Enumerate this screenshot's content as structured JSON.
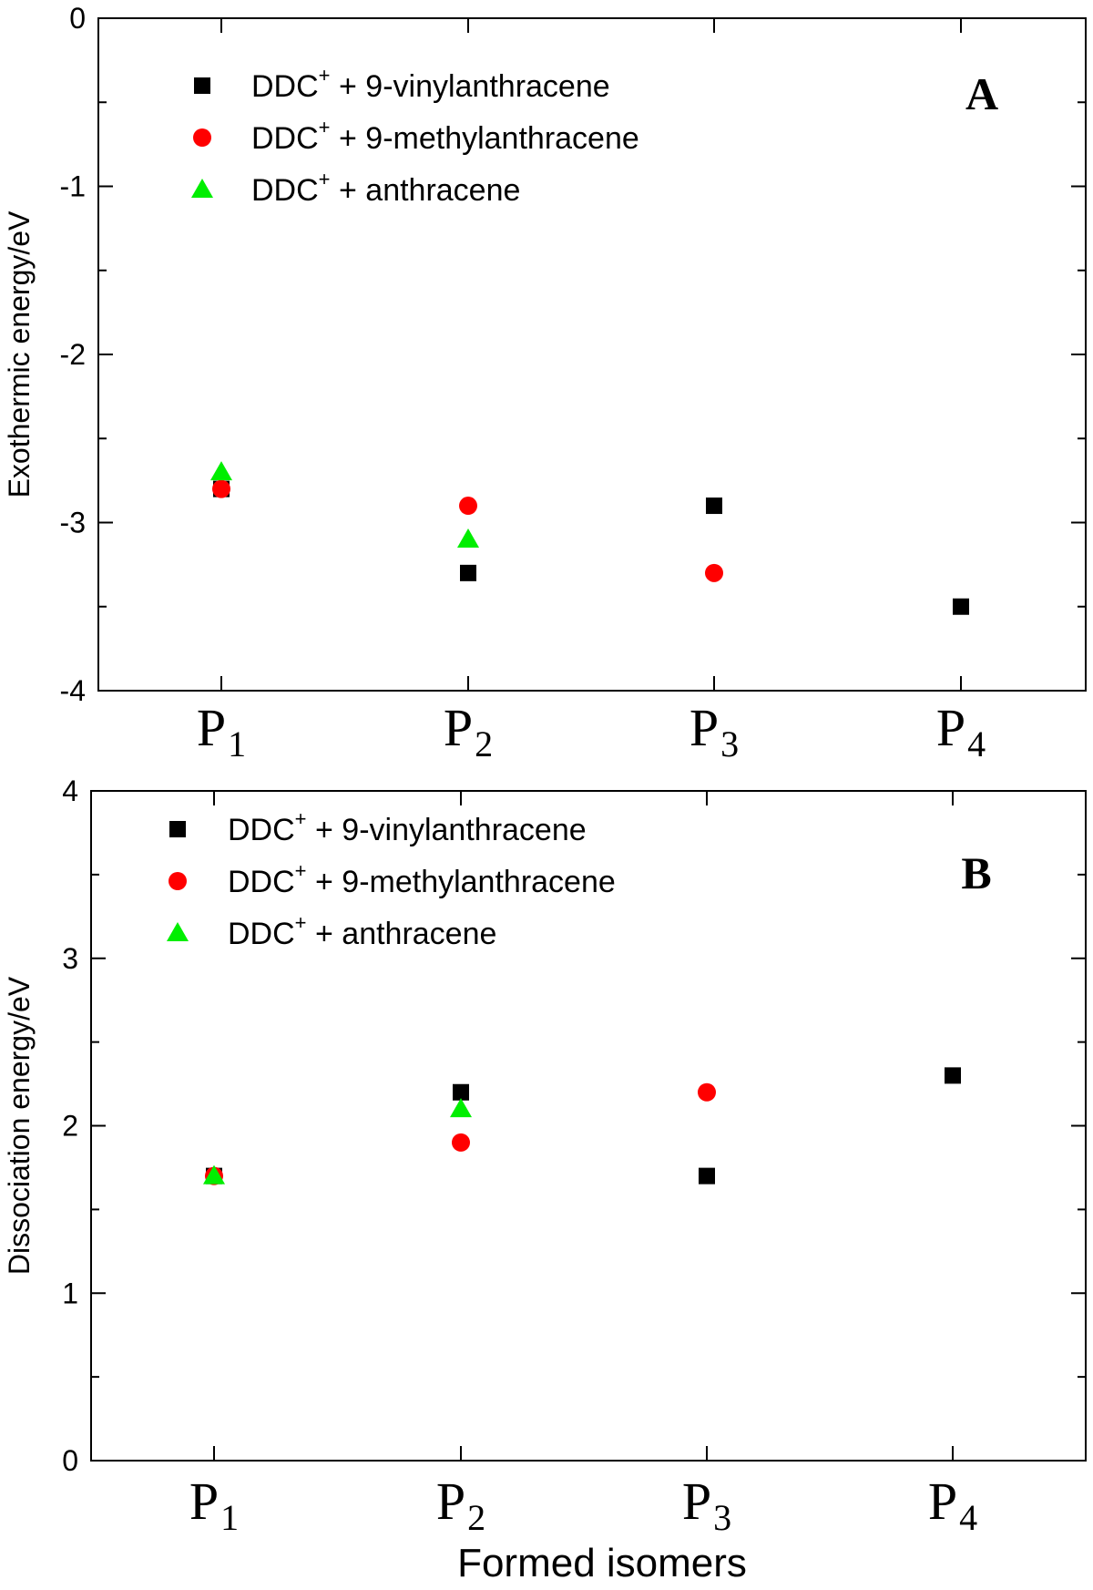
{
  "chart_data": [
    {
      "type": "scatter",
      "panel_label": "A",
      "ylabel": "Exothermic energy/eV",
      "ylim": [
        -4,
        0
      ],
      "yticks": [
        0,
        -1,
        -2,
        -3,
        -4
      ],
      "ytick_labels": [
        "0",
        "-1",
        "-2",
        "-3",
        "-4"
      ],
      "categories": [
        {
          "main": "P",
          "sub": "1"
        },
        {
          "main": "P",
          "sub": "2"
        },
        {
          "main": "P",
          "sub": "3"
        },
        {
          "main": "P",
          "sub": "4"
        }
      ],
      "legend_position": "top-left",
      "series": [
        {
          "name": "DDC",
          "superscript": "+",
          "suffix": " + 9-vinylanthracene",
          "marker": "square",
          "color": "#000000",
          "values": [
            -2.8,
            -3.3,
            -2.9,
            -3.5
          ]
        },
        {
          "name": "DDC",
          "superscript": "+",
          "suffix": " + 9-methylanthracene",
          "marker": "circle",
          "color": "#ff0000",
          "values": [
            -2.8,
            -2.9,
            -3.3,
            null
          ]
        },
        {
          "name": "DDC",
          "superscript": "+",
          "suffix": " + anthracene",
          "marker": "triangle",
          "color": "#00ee00",
          "values": [
            -2.7,
            -3.1,
            null,
            null
          ]
        }
      ]
    },
    {
      "type": "scatter",
      "panel_label": "B",
      "ylabel": "Dissociation energy/eV",
      "xlabel": "Formed isomers",
      "ylim": [
        0,
        4
      ],
      "yticks": [
        4,
        3,
        2,
        1,
        0
      ],
      "ytick_labels": [
        "4",
        "3",
        "2",
        "1",
        "0"
      ],
      "categories": [
        {
          "main": "P",
          "sub": "1"
        },
        {
          "main": "P",
          "sub": "2"
        },
        {
          "main": "P",
          "sub": "3"
        },
        {
          "main": "P",
          "sub": "4"
        }
      ],
      "legend_position": "top-left",
      "series": [
        {
          "name": "DDC",
          "superscript": "+",
          "suffix": " + 9-vinylanthracene",
          "marker": "square",
          "color": "#000000",
          "values": [
            1.7,
            2.2,
            1.7,
            2.3
          ]
        },
        {
          "name": "DDC",
          "superscript": "+",
          "suffix": " + 9-methylanthracene",
          "marker": "circle",
          "color": "#ff0000",
          "values": [
            1.7,
            1.9,
            2.2,
            null
          ]
        },
        {
          "name": "DDC",
          "superscript": "+",
          "suffix": " + anthracene",
          "marker": "triangle",
          "color": "#00ee00",
          "values": [
            1.7,
            2.1,
            null,
            null
          ]
        }
      ]
    }
  ]
}
